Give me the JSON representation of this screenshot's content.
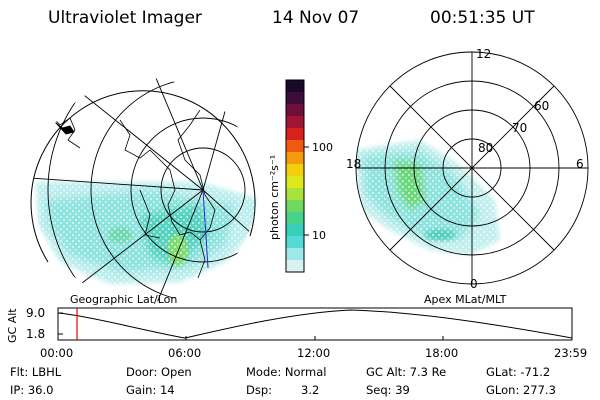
{
  "header": {
    "title": "Ultraviolet Imager",
    "date": "14 Nov 07",
    "time": "00:51:35 UT"
  },
  "left_panel": {
    "label": "Geographic Lat/Lon"
  },
  "right_panel": {
    "label": "Apex MLat/MLT",
    "lat_labels": [
      "80",
      "70",
      "60"
    ],
    "mlt_labels": {
      "top": "12",
      "left": "18",
      "right": "6",
      "bottom": "0"
    }
  },
  "colorbar": {
    "unit_label": "photon cm⁻²s⁻¹",
    "tick_labels": [
      "100",
      "10"
    ],
    "colors": [
      "#1a0a2a",
      "#3b0d3b",
      "#6d0f3a",
      "#a11433",
      "#d7211e",
      "#f05a10",
      "#f59a0a",
      "#f3d00c",
      "#dfe81a",
      "#a8e23a",
      "#6fd85f",
      "#48d38b",
      "#38cfb9",
      "#55d8d8",
      "#9de8e8",
      "#d8f2f2"
    ]
  },
  "altitude_plot": {
    "ylabel": "GC Alt",
    "yticks": [
      "9.0",
      "1.8"
    ],
    "xticks": [
      "00:00",
      "06:00",
      "12:00",
      "18:00",
      "23:59"
    ]
  },
  "footer": {
    "flt": "Flt: LBHL",
    "ip": "IP: 36.0",
    "door": "Door: Open",
    "gain": "Gain: 14",
    "mode": "Mode: Normal",
    "dsp_label": "Dsp:",
    "dsp_value": "3.2",
    "gcalt": "GC Alt: 7.3 Re",
    "seq": "Seq: 39",
    "glat": "GLat: -71.2",
    "glon": "GLon: 277.3"
  }
}
